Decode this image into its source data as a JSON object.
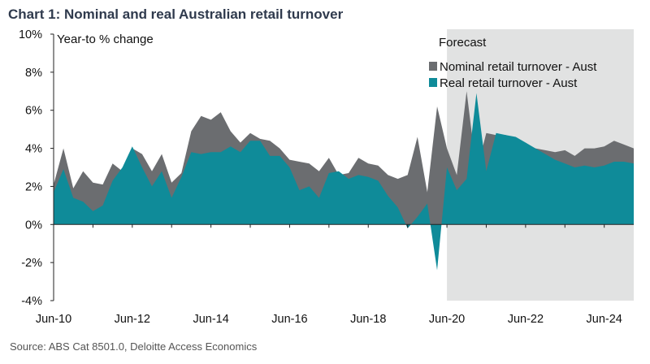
{
  "chart_data": {
    "type": "area",
    "title": "Chart 1:  Nominal and real Australian retail turnover",
    "source": "Source: ABS Cat 8501.0, Deloitte Access Economics",
    "ylabel": "Year-to % change",
    "ylim": [
      -4,
      10
    ],
    "yticks": [
      -4,
      -2,
      0,
      2,
      4,
      6,
      8,
      10
    ],
    "ytick_labels": [
      "-4%",
      "-2%",
      "0%",
      "2%",
      "4%",
      "6%",
      "8%",
      "10%"
    ],
    "xlim": [
      2010.5,
      2025.25
    ],
    "xticks": [
      2010.5,
      2012.5,
      2014.5,
      2016.5,
      2018.5,
      2020.5,
      2022.5,
      2024.5
    ],
    "xtick_labels": [
      "Jun-10",
      "Jun-12",
      "Jun-14",
      "Jun-16",
      "Jun-18",
      "Jun-20",
      "Jun-22",
      "Jun-24"
    ],
    "forecast_region": {
      "label": "Forecast",
      "x_start": 2020.5,
      "x_end": 2025.25,
      "color": "#e1e2e2"
    },
    "grid": false,
    "legend_placement": "top-right",
    "x": [
      2010.5,
      2010.75,
      2011,
      2011.25,
      2011.5,
      2011.75,
      2012,
      2012.25,
      2012.5,
      2012.75,
      2013,
      2013.25,
      2013.5,
      2013.75,
      2014,
      2014.25,
      2014.5,
      2014.75,
      2015,
      2015.25,
      2015.5,
      2015.75,
      2016,
      2016.25,
      2016.5,
      2016.75,
      2017,
      2017.25,
      2017.5,
      2017.75,
      2018,
      2018.25,
      2018.5,
      2018.75,
      2019,
      2019.25,
      2019.5,
      2019.75,
      2020,
      2020.25,
      2020.5,
      2020.75,
      2021,
      2021.25,
      2021.5,
      2021.75,
      2022,
      2022.25,
      2022.5,
      2022.75,
      2023,
      2023.25,
      2023.5,
      2023.75,
      2024,
      2024.25,
      2024.5,
      2024.75,
      2025,
      2025.25
    ],
    "series": [
      {
        "name": "Nominal retail turnover - Aust",
        "color": "#6b6d70",
        "values": [
          2.1,
          4.0,
          1.9,
          2.8,
          2.2,
          2.1,
          3.2,
          2.8,
          4.0,
          3.7,
          2.8,
          3.7,
          2.2,
          2.7,
          4.9,
          5.7,
          5.5,
          5.9,
          4.9,
          4.3,
          4.8,
          4.5,
          4.4,
          4.0,
          3.4,
          3.3,
          3.2,
          2.8,
          3.5,
          2.6,
          2.7,
          3.5,
          3.2,
          3.1,
          2.6,
          2.4,
          2.6,
          4.6,
          1.7,
          6.2,
          4.0,
          2.6,
          7.0,
          2.8,
          4.8,
          4.7,
          4.7,
          4.4,
          4.2,
          4.0,
          3.9,
          3.8,
          3.9,
          3.6,
          4.0,
          4.0,
          4.1,
          4.4,
          4.2,
          4.0
        ]
      },
      {
        "name": "Real retail turnover - Aust",
        "color": "#0f8b99",
        "values": [
          1.7,
          2.9,
          1.4,
          1.2,
          0.7,
          1.0,
          2.3,
          3.0,
          4.1,
          3.0,
          2.0,
          2.8,
          1.4,
          2.5,
          3.8,
          3.7,
          3.8,
          3.8,
          4.1,
          3.8,
          4.4,
          4.4,
          3.6,
          3.6,
          3.0,
          1.8,
          2.0,
          1.4,
          2.7,
          2.8,
          2.4,
          2.6,
          2.5,
          2.3,
          1.5,
          0.9,
          -0.2,
          0.4,
          1.1,
          -2.4,
          3.0,
          1.8,
          2.4,
          6.9,
          2.8,
          4.8,
          4.7,
          4.6,
          4.3,
          4.0,
          3.7,
          3.4,
          3.2,
          3.0,
          3.1,
          3.0,
          3.1,
          3.3,
          3.3,
          3.2
        ]
      }
    ]
  }
}
